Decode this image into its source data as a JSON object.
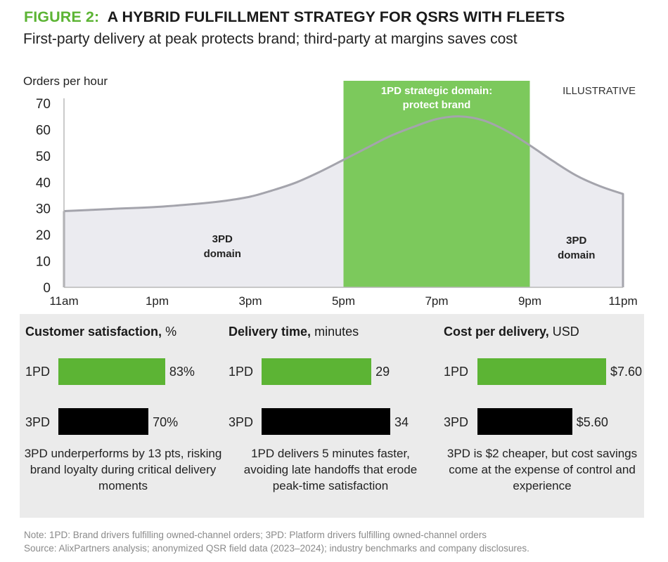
{
  "header": {
    "figure_label": "FIGURE 2:",
    "title": "A HYBRID FULFILLMENT STRATEGY FOR QSRS WITH FLEETS",
    "subtitle": "First-party delivery at peak protects brand; third-party at margins saves cost"
  },
  "colors": {
    "green": "#5cb434",
    "green_band": "#7cc95c",
    "curve": "#a4a4ac",
    "area": "#ebebf0",
    "black": "#000000"
  },
  "chart_data": [
    {
      "type": "area",
      "title": "Orders per hour",
      "tag": "ILLUSTRATIVE",
      "ylabel": "Orders per hour",
      "xlabel": "",
      "ylim": [
        0,
        70
      ],
      "yticks": [
        "0",
        "10",
        "20",
        "30",
        "40",
        "50",
        "60",
        "70"
      ],
      "xlim": [
        0,
        12
      ],
      "xticks": [
        {
          "label": "11am",
          "x": 0
        },
        {
          "label": "1pm",
          "x": 2
        },
        {
          "label": "3pm",
          "x": 4
        },
        {
          "label": "5pm",
          "x": 6
        },
        {
          "label": "7pm",
          "x": 8
        },
        {
          "label": "9pm",
          "x": 10
        },
        {
          "label": "11pm",
          "x": 12
        }
      ],
      "series": [
        {
          "name": "Orders per hour",
          "x": [
            0,
            1,
            2,
            3,
            3.5,
            4,
            4.5,
            5,
            5.5,
            6,
            6.5,
            7,
            7.5,
            8,
            8.5,
            9,
            9.5,
            10,
            10.5,
            11,
            11.5,
            12
          ],
          "values": [
            29,
            29.8,
            30.6,
            32,
            33,
            34.5,
            37,
            40,
            44,
            48.5,
            53,
            57.5,
            61,
            64,
            65,
            63.5,
            59.5,
            54,
            48,
            42.5,
            38.5,
            35.5
          ]
        }
      ],
      "highlight": {
        "x_start": 6,
        "x_end": 10,
        "label_line1": "1PD strategic domain:",
        "label_line2": "protect brand"
      },
      "annotations": [
        {
          "line1": "3PD",
          "line2": "domain",
          "x": 3.4,
          "y": 16.5
        },
        {
          "line1": "3PD",
          "line2": "domain",
          "x": 11,
          "y": 16
        }
      ]
    },
    {
      "type": "bar",
      "title": "Customer satisfaction,",
      "unit": "%",
      "categories": [
        "1PD",
        "3PD"
      ],
      "values": [
        83,
        70
      ],
      "value_labels": [
        "83%",
        "70%"
      ],
      "xlim": [
        0,
        100
      ],
      "caption": "3PD underperforms by 13 pts, risking brand loyalty during critical delivery moments"
    },
    {
      "type": "bar",
      "title": "Delivery time,",
      "unit": "minutes",
      "categories": [
        "1PD",
        "3PD"
      ],
      "values": [
        29,
        34
      ],
      "value_labels": [
        "29",
        "34"
      ],
      "xlim": [
        0,
        34
      ],
      "caption": "1PD delivers 5 minutes faster, avoiding late handoffs that erode peak-time satisfaction"
    },
    {
      "type": "bar",
      "title": "Cost per delivery,",
      "unit": "USD",
      "categories": [
        "1PD",
        "3PD"
      ],
      "values": [
        7.6,
        5.6
      ],
      "value_labels": [
        "$7.60",
        "$5.60"
      ],
      "xlim": [
        0,
        7.6
      ],
      "caption": "3PD is $2 cheaper, but cost savings come at the expense of control and experience"
    }
  ],
  "footer": {
    "note": "Note: 1PD: Brand drivers fulfilling owned-channel orders; 3PD: Platform drivers fulfilling owned-channel orders",
    "source": "Source: AlixPartners analysis; anonymized QSR field data (2023–2024); industry benchmarks and company disclosures."
  }
}
